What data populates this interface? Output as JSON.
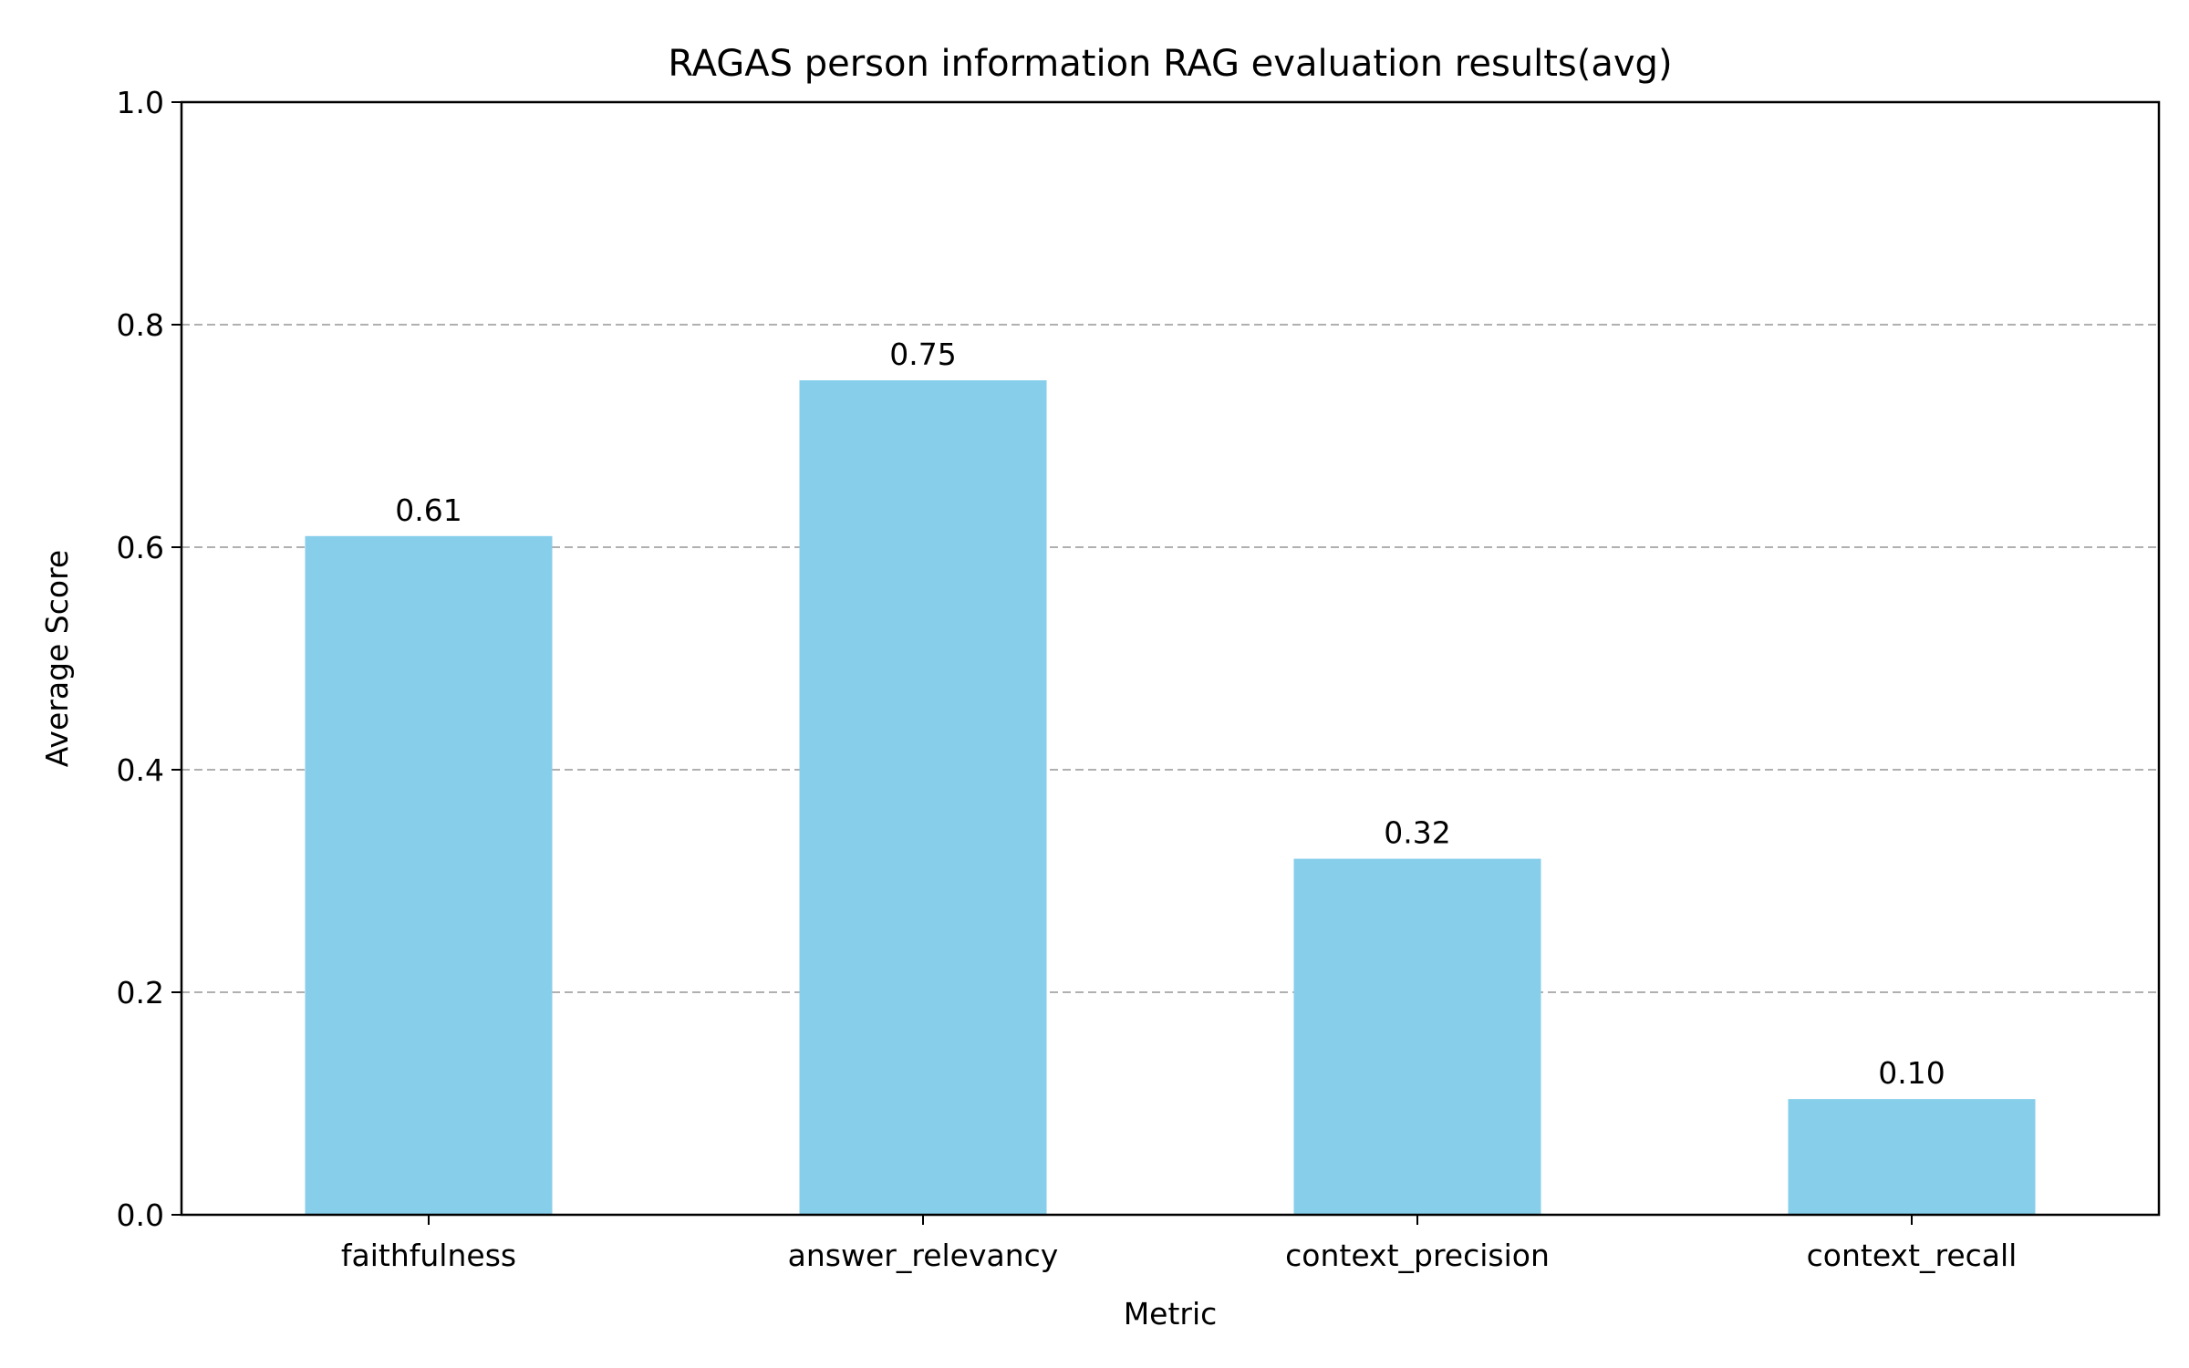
{
  "chart_data": {
    "type": "bar",
    "title": "RAGAS person information RAG evaluation results(avg)",
    "xlabel": "Metric",
    "ylabel": "Average Score",
    "categories": [
      "faithfulness",
      "answer_relevancy",
      "context_precision",
      "context_recall"
    ],
    "values": [
      0.61,
      0.75,
      0.32,
      0.104
    ],
    "data_labels": [
      "0.61",
      "0.75",
      "0.32",
      "0.10"
    ],
    "ylim": [
      0,
      1.0
    ],
    "yticks": [
      0.0,
      0.2,
      0.4,
      0.6,
      0.8,
      1.0
    ],
    "ytick_labels": [
      "0.0",
      "0.2",
      "0.4",
      "0.6",
      "0.8",
      "1.0"
    ],
    "grid": "y-dashed",
    "legend": "none",
    "colors": {
      "bar": "#87ceeb",
      "grid": "#b0b0b0",
      "axis": "#000000"
    }
  }
}
